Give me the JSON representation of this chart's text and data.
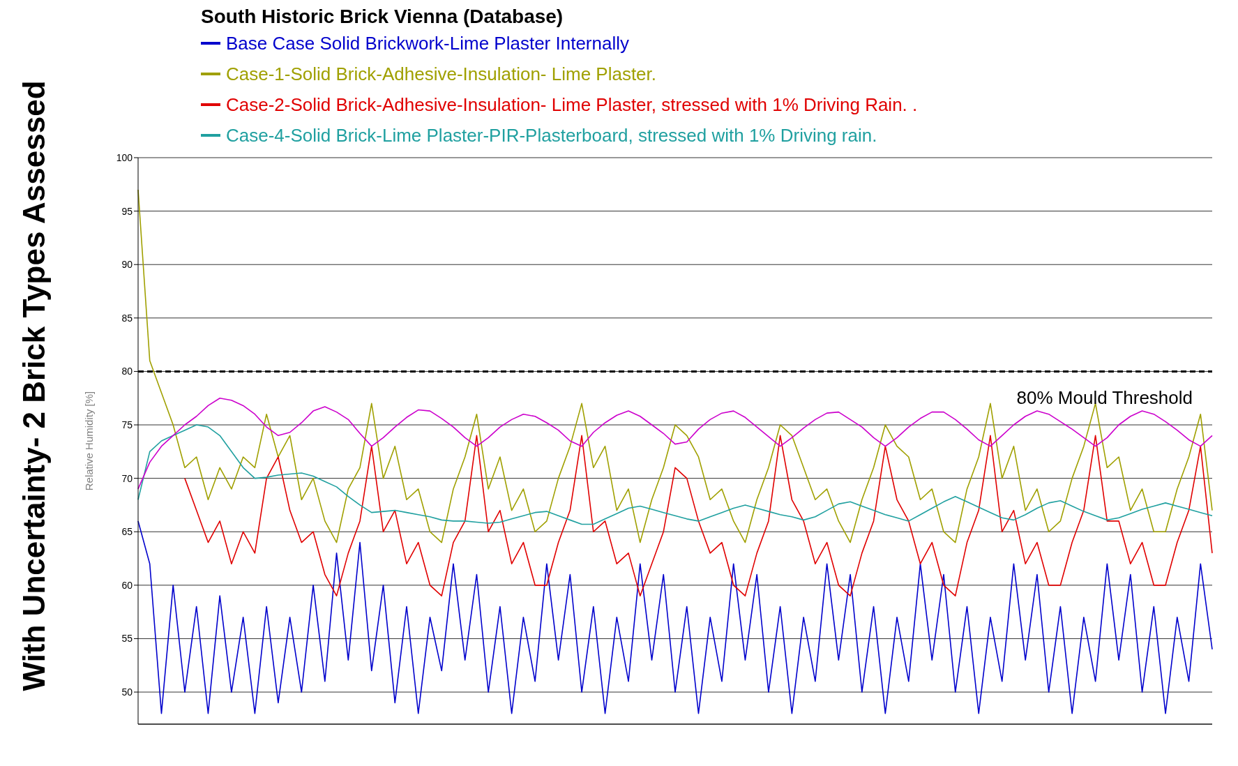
{
  "chart_data": {
    "type": "line",
    "title": "South Historic Brick Vienna (Database)",
    "ylabel": "Relative Humidity [%]",
    "annotations": [
      "With Uncertainty- 2 Brick Types Assessed"
    ],
    "categories": [
      null,
      null,
      null,
      null,
      null,
      null,
      null,
      null,
      null,
      null,
      null,
      null,
      null,
      null,
      null,
      null,
      null,
      null,
      null,
      null,
      null,
      null,
      null,
      null,
      null,
      null,
      null,
      null,
      null,
      null,
      null,
      null,
      null,
      null,
      null,
      null,
      null,
      null,
      null,
      null,
      null,
      null,
      null,
      null,
      null,
      null,
      null,
      null,
      null,
      null,
      null,
      null,
      null,
      null,
      null,
      null,
      null,
      null,
      null,
      null,
      null,
      null,
      null,
      null,
      null,
      null,
      null,
      null,
      null,
      null,
      null,
      null,
      null,
      null,
      null,
      null,
      null,
      null,
      null,
      null,
      null,
      null,
      null,
      null,
      null,
      null,
      null,
      null,
      null,
      null,
      null,
      null,
      null
    ],
    "ylim": [
      47,
      100
    ],
    "yticks": [
      50,
      55,
      60,
      65,
      70,
      75,
      80,
      85,
      90,
      95,
      100
    ],
    "grid": "y",
    "legend": "top",
    "tick_labels": "y",
    "marker": "none",
    "line_style": "solid",
    "ref_lines": [
      {
        "axis": "y",
        "value": 80,
        "label": "80% Mould Threshold",
        "color": "#000000",
        "line_style": "dashed"
      }
    ],
    "series": [
      {
        "name": "Base Case Solid Brickwork-Lime Plaster Internally",
        "color": "#0000cc",
        "values": [
          66,
          62,
          48,
          60,
          50,
          58,
          48,
          59,
          50,
          57,
          48,
          58,
          49,
          57,
          50,
          60,
          51,
          63,
          53,
          64,
          52,
          60,
          49,
          58,
          48,
          57,
          52,
          62,
          53,
          61,
          50,
          58,
          48,
          57,
          51,
          62,
          53,
          61,
          50,
          58,
          48,
          57,
          51,
          62,
          53,
          61,
          50,
          58,
          48,
          57,
          51,
          62,
          53,
          61,
          50,
          58,
          48,
          57,
          51,
          62,
          53,
          61,
          50,
          58,
          48,
          57,
          51,
          62,
          53,
          61,
          50,
          58,
          48,
          57,
          51,
          62,
          53,
          61,
          50,
          58,
          48,
          57,
          51,
          62,
          53,
          61,
          50,
          58,
          48,
          57,
          51,
          62,
          54
        ]
      },
      {
        "name": "Case-1-Solid Brick-Adhesive-Insulation- Lime Plaster.",
        "color": "#a0a000",
        "values": [
          97,
          81,
          78,
          75,
          71,
          72,
          68,
          71,
          69,
          72,
          71,
          76,
          72,
          74,
          68,
          70,
          66,
          64,
          69,
          71,
          77,
          70,
          73,
          68,
          69,
          65,
          64,
          69,
          72,
          76,
          69,
          72,
          67,
          69,
          65,
          66,
          70,
          73,
          77,
          71,
          73,
          67,
          69,
          64,
          68,
          71,
          75,
          74,
          72,
          68,
          69,
          66,
          64,
          68,
          71,
          75,
          74,
          71,
          68,
          69,
          66,
          64,
          68,
          71,
          75,
          73,
          72,
          68,
          69,
          65,
          64,
          69,
          72,
          77,
          70,
          73,
          67,
          69,
          65,
          66,
          70,
          73,
          77,
          71,
          72,
          67,
          69,
          65,
          65,
          69,
          72,
          76,
          67
        ]
      },
      {
        "name": "Case-2-Solid Brick-Adhesive-Insulation- Lime Plaster, stressed with 1% Driving Rain. .",
        "color": "#e00000",
        "values": [
          null,
          null,
          null,
          null,
          70,
          67,
          64,
          66,
          62,
          65,
          63,
          70,
          72,
          67,
          64,
          65,
          61,
          59,
          63,
          66,
          73,
          65,
          67,
          62,
          64,
          60,
          59,
          64,
          66,
          74,
          65,
          67,
          62,
          64,
          60,
          60,
          64,
          67,
          74,
          65,
          66,
          62,
          63,
          59,
          62,
          65,
          71,
          70,
          66,
          63,
          64,
          60,
          59,
          63,
          66,
          74,
          68,
          66,
          62,
          64,
          60,
          59,
          63,
          66,
          73,
          68,
          66,
          62,
          64,
          60,
          59,
          64,
          67,
          74,
          65,
          67,
          62,
          64,
          60,
          60,
          64,
          67,
          74,
          66,
          66,
          62,
          64,
          60,
          60,
          64,
          67,
          73,
          63
        ]
      },
      {
        "name": "Case-4-Solid Brick-Lime Plaster-PIR-Plasterboard, stressed with 1% Driving rain.",
        "color": "#20a0a0",
        "values": [
          68,
          72.5,
          73.5,
          74,
          74.5,
          75,
          74.8,
          74,
          72.5,
          71,
          70,
          70.1,
          70.3,
          70.4,
          70.5,
          70.2,
          69.7,
          69.2,
          68.3,
          67.5,
          66.8,
          66.9,
          67,
          66.8,
          66.6,
          66.4,
          66.1,
          66,
          66,
          65.9,
          65.8,
          65.9,
          66.2,
          66.5,
          66.8,
          66.9,
          66.5,
          66.1,
          65.7,
          65.7,
          66.2,
          66.7,
          67.2,
          67.4,
          67.1,
          66.8,
          66.5,
          66.2,
          66,
          66.4,
          66.8,
          67.2,
          67.5,
          67.2,
          66.9,
          66.6,
          66.4,
          66.1,
          66.4,
          67,
          67.6,
          67.8,
          67.4,
          67,
          66.6,
          66.3,
          66,
          66.6,
          67.2,
          67.8,
          68.3,
          67.8,
          67.3,
          66.8,
          66.3,
          66.1,
          66.6,
          67.2,
          67.7,
          67.9,
          67.4,
          66.9,
          66.5,
          66.1,
          66.3,
          66.7,
          67.1,
          67.4,
          67.7,
          67.4,
          67.1,
          66.8,
          66.5
        ]
      },
      {
        "color": "#cc00cc",
        "values": [
          69,
          71.5,
          73,
          74,
          75,
          75.8,
          76.8,
          77.5,
          77.3,
          76.8,
          76,
          74.8,
          74,
          74.3,
          75.2,
          76.3,
          76.7,
          76.2,
          75.5,
          74.2,
          73,
          73.8,
          74.8,
          75.7,
          76.4,
          76.3,
          75.6,
          74.8,
          73.8,
          73,
          73.8,
          74.8,
          75.5,
          76,
          75.8,
          75.2,
          74.5,
          73.5,
          73,
          74.3,
          75.2,
          75.9,
          76.3,
          75.8,
          75,
          74.2,
          73.2,
          73.4,
          74.6,
          75.5,
          76.1,
          76.3,
          75.7,
          74.8,
          73.9,
          73,
          73.8,
          74.7,
          75.5,
          76.1,
          76.2,
          75.5,
          74.8,
          73.8,
          73,
          73.8,
          74.8,
          75.6,
          76.2,
          76.2,
          75.5,
          74.6,
          73.6,
          73,
          74,
          75,
          75.8,
          76.3,
          76,
          75.3,
          74.6,
          73.8,
          73,
          73.8,
          75,
          75.8,
          76.3,
          76,
          75.3,
          74.5,
          73.6,
          73,
          74
        ]
      }
    ]
  }
}
